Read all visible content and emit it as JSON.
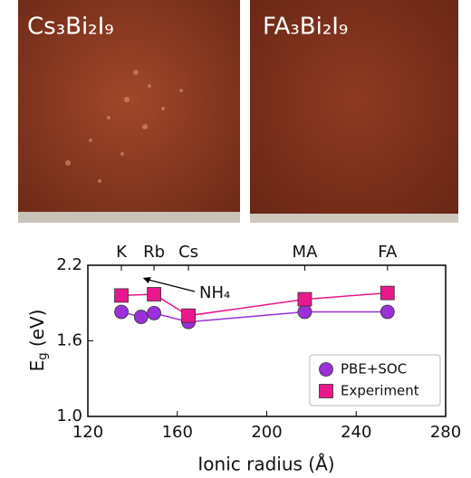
{
  "photos": [
    {
      "label": "Cs₃Bi₂I₉"
    },
    {
      "label": "FA₃Bi₂I₉"
    }
  ],
  "chart_data": {
    "type": "line",
    "xlabel": "Ionic radius (Å)",
    "ylabel": [
      "E",
      "g",
      " (eV)"
    ],
    "xlim": [
      120,
      280
    ],
    "ylim": [
      1.0,
      2.2
    ],
    "xticks": [
      120,
      160,
      200,
      240,
      280
    ],
    "yticks": [
      {
        "value": 1.0,
        "label": "1.0"
      },
      1.6,
      2.2
    ],
    "top_ticks": [
      {
        "value": 135,
        "label": "K"
      },
      {
        "value": 149.6,
        "label": "Rb"
      },
      {
        "value": 165,
        "label": "Cs"
      },
      {
        "value": 217,
        "label": "MA"
      },
      {
        "value": 254,
        "label": "FA"
      }
    ],
    "annotation": {
      "text": "NH₄",
      "x": 143.8
    },
    "legend": "lower right",
    "series": [
      {
        "name": "PBE+SOC",
        "color": "#9b30d9",
        "marker": "circle",
        "x": [
          135,
          143.8,
          149.6,
          165,
          217,
          254
        ],
        "values": [
          1.83,
          1.79,
          1.82,
          1.75,
          1.83,
          1.83
        ]
      },
      {
        "name": "Experiment",
        "color": "#e8188c",
        "marker": "square",
        "x": [
          135,
          149.6,
          165,
          217,
          254
        ],
        "values": [
          1.96,
          1.97,
          1.8,
          1.93,
          1.98
        ]
      }
    ]
  }
}
